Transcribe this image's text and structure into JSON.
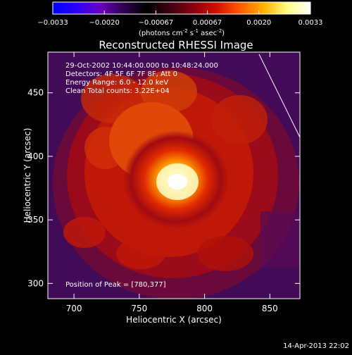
{
  "colorbar": {
    "ticks": [
      "−0.0033",
      "−0.0020",
      "−0.00067",
      "0.00067",
      "0.0020",
      "0.0033"
    ],
    "units_text": "(photons cm",
    "units_sup1": "-2",
    "units_mid": " s",
    "units_sup2": "-1",
    "units_end": " asec",
    "units_sup3": "-2",
    "units_close": ")",
    "colors": [
      "#0000ff",
      "#2a00ff",
      "#6a00c0",
      "#300050",
      "#000000",
      "#3c0010",
      "#8a0010",
      "#d01000",
      "#ff5a00",
      "#ffb000",
      "#ffff80",
      "#ffffff"
    ]
  },
  "chart_data": {
    "type": "heatmap",
    "title": "Reconstructed RHESSI Image",
    "xlabel": "Heliocentric X (arcsec)",
    "ylabel": "Heliocentric Y (arcsec)",
    "xlim": [
      680,
      873
    ],
    "ylim": [
      288,
      482
    ],
    "xticks": [
      700,
      750,
      800,
      850
    ],
    "yticks": [
      300,
      350,
      400,
      450
    ],
    "peak": {
      "x": 780,
      "y": 377
    },
    "annotations": [
      "29-Oct-2002 10:44:00.000 to 10:48:24.000",
      "Detectors: 4F 5F 6F 7F 8F, Att 0",
      "Energy Range: 6.0 - 12.0 keV",
      "Clean    Total counts: 3.22E+04"
    ],
    "peak_label": "Position of Peak = [780,377]"
  },
  "footer": {
    "timestamp": "14-Apr-2013 22:02"
  }
}
